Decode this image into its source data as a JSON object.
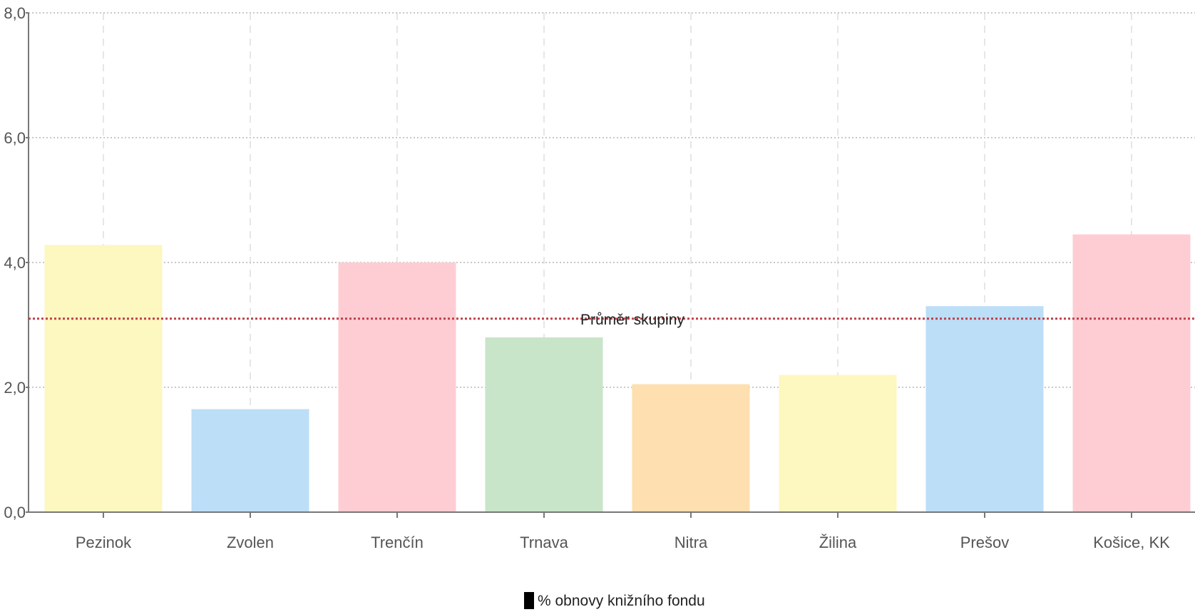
{
  "chart_data": {
    "type": "bar",
    "categories": [
      "Pezinok",
      "Zvolen",
      "Trenčín",
      "Trnava",
      "Nitra",
      "Žilina",
      "Prešov",
      "Košice, KK"
    ],
    "series": [
      {
        "name": "% obnovy knižního fondu",
        "values": [
          4.28,
          1.65,
          4.0,
          2.8,
          2.05,
          2.2,
          3.3,
          4.45
        ],
        "colors": [
          "#fdf7c0",
          "#bcdef7",
          "#fecdd3",
          "#c8e5c9",
          "#fddfb0",
          "#fdf7c0",
          "#bcdef7",
          "#fecdd3"
        ]
      }
    ],
    "y_ticks": [
      "0,0",
      "2,0",
      "4,0",
      "6,0",
      "8,0"
    ],
    "y_tick_values": [
      0,
      2,
      4,
      6,
      8
    ],
    "ylim": [
      0,
      8
    ],
    "average": {
      "label": "Průměr skupiny",
      "value": 3.1,
      "color": "#c0404a"
    },
    "legend": {
      "label": "% obnovy knižního fondu",
      "swatch_color": "#000000",
      "position": "bottom-center"
    },
    "grid": true
  }
}
